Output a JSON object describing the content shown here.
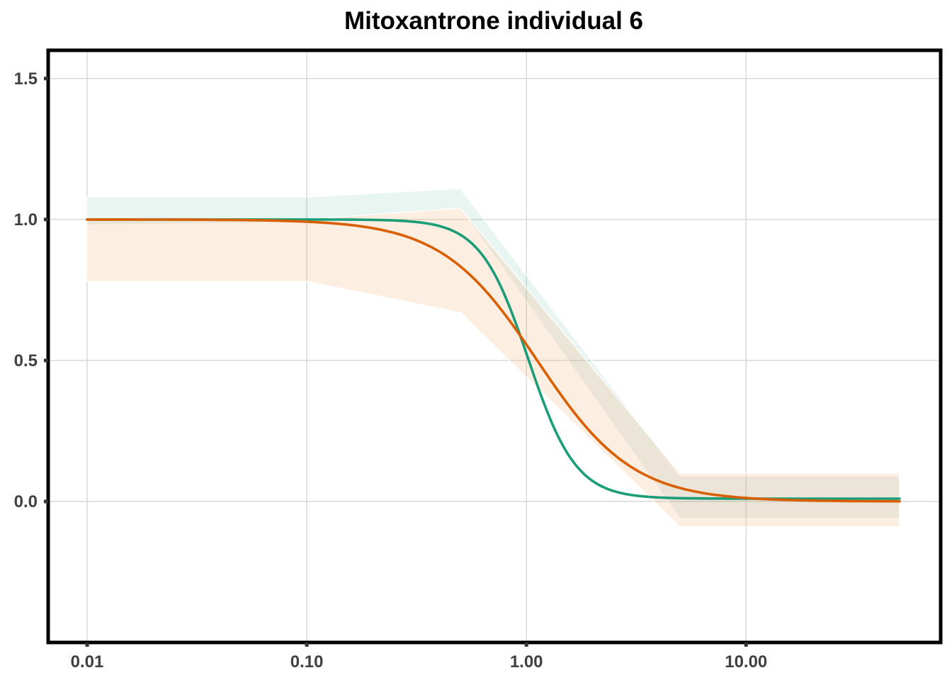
{
  "chart_data": {
    "type": "line",
    "title": "Mitoxantrone individual 6",
    "xlabel": "",
    "ylabel": "",
    "xscale": "log10",
    "xlim": [
      0.01,
      50
    ],
    "ylim": [
      -0.5,
      1.6
    ],
    "x_ticks": [
      {
        "value": 0.01,
        "label": "0.01"
      },
      {
        "value": 0.1,
        "label": "0.10"
      },
      {
        "value": 1,
        "label": "1.00"
      },
      {
        "value": 10,
        "label": "10.00"
      }
    ],
    "y_ticks": [
      {
        "value": 0,
        "label": "0.0"
      },
      {
        "value": 0.5,
        "label": "0.5"
      },
      {
        "value": 1,
        "label": "1.0"
      },
      {
        "value": 1.5,
        "label": "1.5"
      }
    ],
    "grid": true,
    "legend": "none",
    "series": [
      {
        "color": "#1B9E77",
        "band_color": "#1B9E77",
        "band_opacity": 0.1,
        "curve": {
          "top": 1.0,
          "bottom": 0.01,
          "ec50": 1.02,
          "hill": 4.0
        },
        "band": [
          {
            "x": 0.01,
            "lower": 0.98,
            "upper": 1.08
          },
          {
            "x": 0.1,
            "lower": 0.99,
            "upper": 1.08
          },
          {
            "x": 0.5,
            "lower": 1.04,
            "upper": 1.11
          },
          {
            "x": 5,
            "lower": -0.06,
            "upper": 0.09
          },
          {
            "x": 50,
            "lower": -0.06,
            "upper": 0.09
          }
        ]
      },
      {
        "color": "#D95F02",
        "band_color": "#F4A261",
        "band_opacity": 0.18,
        "curve": {
          "top": 1.0,
          "bottom": 0.0,
          "ec50": 1.12,
          "hill": 2.0
        },
        "band": [
          {
            "x": 0.01,
            "lower": 0.78,
            "upper": 1.0
          },
          {
            "x": 0.1,
            "lower": 0.78,
            "upper": 1.0
          },
          {
            "x": 0.5,
            "lower": 0.67,
            "upper": 1.04
          },
          {
            "x": 5,
            "lower": -0.09,
            "upper": 0.1
          },
          {
            "x": 50,
            "lower": -0.09,
            "upper": 0.1
          }
        ]
      }
    ]
  }
}
